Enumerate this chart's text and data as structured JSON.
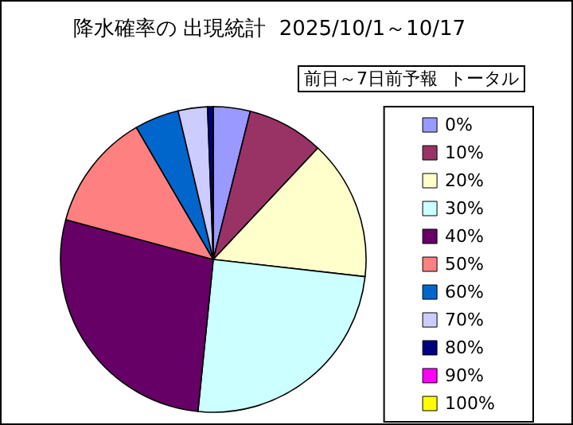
{
  "chart_data": {
    "type": "pie",
    "title": "降水確率の 出現統計  2025/10/1～10/17",
    "legend_title": "前日～7日前予報  トータル",
    "categories": [
      "0%",
      "10%",
      "20%",
      "30%",
      "40%",
      "50%",
      "60%",
      "70%",
      "80%",
      "90%",
      "100%"
    ],
    "values": [
      3.9,
      8.1,
      14.8,
      24.8,
      27.6,
      12.4,
      4.7,
      3.1,
      0.6,
      0,
      0
    ],
    "colors": [
      "#9999ff",
      "#993366",
      "#ffffcc",
      "#ccffff",
      "#660066",
      "#ff8080",
      "#0066cc",
      "#ccccff",
      "#000080",
      "#ff00ff",
      "#ffff00"
    ],
    "legend": "right"
  }
}
